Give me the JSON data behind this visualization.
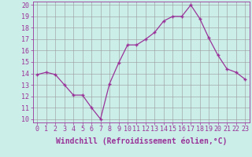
{
  "x": [
    0,
    1,
    2,
    3,
    4,
    5,
    6,
    7,
    8,
    9,
    10,
    11,
    12,
    13,
    14,
    15,
    16,
    17,
    18,
    19,
    20,
    21,
    22,
    23
  ],
  "y": [
    13.9,
    14.1,
    13.9,
    13.0,
    12.1,
    12.1,
    11.0,
    10.0,
    13.1,
    14.9,
    16.5,
    16.5,
    17.0,
    17.6,
    18.6,
    19.0,
    19.0,
    20.0,
    18.8,
    17.1,
    15.6,
    14.4,
    14.1,
    13.5
  ],
  "line_color": "#993399",
  "marker": "+",
  "bg_color": "#cceee8",
  "grid_color": "#999999",
  "xlabel": "Windchill (Refroidissement éolien,°C)",
  "ylim": [
    10,
    20
  ],
  "xlim": [
    0,
    23
  ],
  "yticks": [
    10,
    11,
    12,
    13,
    14,
    15,
    16,
    17,
    18,
    19,
    20
  ],
  "xticks": [
    0,
    1,
    2,
    3,
    4,
    5,
    6,
    7,
    8,
    9,
    10,
    11,
    12,
    13,
    14,
    15,
    16,
    17,
    18,
    19,
    20,
    21,
    22,
    23
  ],
  "tick_color": "#993399",
  "label_color": "#993399",
  "axis_color": "#993399",
  "fontsize_xlabel": 7.0,
  "fontsize_ticks": 6.0
}
